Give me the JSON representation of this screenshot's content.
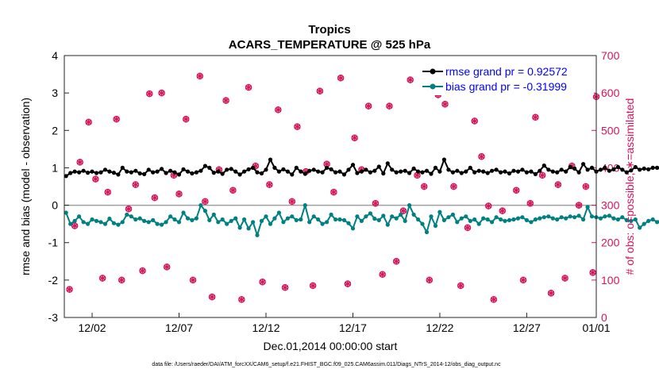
{
  "chart_data": {
    "type": "line",
    "title": "Tropics",
    "subtitle": "ACARS_TEMPERATURE @ 525 hPa",
    "xlabel": "Dec.01,2014 00:00:00 start",
    "ylabel_left": "rmse and bias (model - observation)",
    "ylabel_right": "# of obs: o=possible; ∗=assimilated",
    "footnote": "data file: /Users/raeder/DAI/ATM_forcXX/CAM6_setup/f.e21.FHIST_BGC.f09_025.CAM6assim.011/Diags_NTrS_2014-12/obs_diag_output.nc",
    "x_range": [
      0.4,
      31.0
    ],
    "x_ticks": [
      {
        "x": 2,
        "label": "12/02"
      },
      {
        "x": 7,
        "label": "12/07"
      },
      {
        "x": 12,
        "label": "12/12"
      },
      {
        "x": 17,
        "label": "12/17"
      },
      {
        "x": 22,
        "label": "12/22"
      },
      {
        "x": 27,
        "label": "12/27"
      },
      {
        "x": 31,
        "label": "01/01"
      }
    ],
    "y_left_range": [
      -3,
      4
    ],
    "y_left_ticks": [
      "-3",
      "-2",
      "-1",
      "0",
      "1",
      "2",
      "3",
      "4"
    ],
    "y_right_range": [
      0,
      700
    ],
    "y_right_ticks": [
      "0",
      "100",
      "200",
      "300",
      "400",
      "500",
      "600",
      "700"
    ],
    "zero_line": 0,
    "legend": [
      {
        "label": "rmse grand pr = 0.92572",
        "color": "#000000"
      },
      {
        "label": "bias grand pr = -0.31999",
        "color": "#008080"
      }
    ],
    "legend_position": "top-right",
    "colors": {
      "rmse": "#000000",
      "bias": "#008080",
      "obs": "#d6145a",
      "zero": "#a0a0a0",
      "legend_text": "#0000ff",
      "right_axis": "#d6145a"
    },
    "series": [
      {
        "name": "rmse",
        "x_start": 0.5,
        "x_step": 0.25,
        "values": [
          0.78,
          0.86,
          0.9,
          0.88,
          0.92,
          0.87,
          0.9,
          0.86,
          0.88,
          0.95,
          0.9,
          0.87,
          0.82,
          1.0,
          0.9,
          0.88,
          0.92,
          0.85,
          0.83,
          0.95,
          0.88,
          0.9,
          0.97,
          0.86,
          0.92,
          0.88,
          0.82,
          0.96,
          0.9,
          0.85,
          0.88,
          0.92,
          1.05,
          1.0,
          0.87,
          0.9,
          0.84,
          0.95,
          0.97,
          0.9,
          0.82,
          0.9,
          0.96,
          1.0,
          0.88,
          0.85,
          0.95,
          1.22,
          1.0,
          0.9,
          0.96,
          0.9,
          0.82,
          1.0,
          0.9,
          0.84,
          0.92,
          0.95,
          0.9,
          0.88,
          1.0,
          0.96,
          0.88,
          0.9,
          0.82,
          0.95,
          1.08,
          0.86,
          0.9,
          0.95,
          0.88,
          0.92,
          1.03,
          0.85,
          1.12,
          0.95,
          0.88,
          0.9,
          0.92,
          0.86,
          0.98,
          0.9,
          0.88,
          0.92,
          0.84,
          1.0,
          0.9,
          1.22,
          0.95,
          0.88,
          0.92,
          0.86,
          0.9,
          1.0,
          0.88,
          0.92,
          0.9,
          0.86,
          0.92,
          0.95,
          0.88,
          0.9,
          0.85,
          0.92,
          0.9,
          0.95,
          0.88,
          0.9,
          0.83,
          0.92,
          1.06,
          0.95,
          0.9,
          0.88,
          0.95,
          0.9,
          1.02,
          0.98,
          0.88,
          1.1,
          0.95,
          1.0,
          0.9,
          0.95,
          1.0,
          0.92,
          0.96,
          1.02,
          0.95,
          0.88,
          0.93,
          1.02,
          0.95,
          0.98,
          0.96,
          1.0,
          1.0,
          0.96,
          0.88,
          0.98,
          0.9,
          0.88,
          0.9,
          0.9,
          0.92,
          0.9,
          0.88,
          0.95,
          0.88,
          0.92,
          0.86,
          0.95,
          0.9,
          0.92,
          0.88,
          0.85,
          0.92,
          0.86,
          0.85,
          0.92,
          0.88,
          0.9,
          0.83,
          0.88,
          0.9,
          0.92,
          0.85,
          0.96,
          0.92,
          0.95,
          0.88,
          0.75
        ]
      },
      {
        "name": "bias",
        "x_start": 0.5,
        "x_step": 0.25,
        "values": [
          -0.2,
          -0.5,
          -0.42,
          -0.3,
          -0.45,
          -0.5,
          -0.38,
          -0.42,
          -0.45,
          -0.5,
          -0.36,
          -0.48,
          -0.52,
          -0.45,
          -0.25,
          -0.3,
          -0.38,
          -0.35,
          -0.42,
          -0.45,
          -0.4,
          -0.5,
          -0.52,
          -0.45,
          -0.3,
          -0.38,
          -0.45,
          -0.2,
          -0.35,
          -0.4,
          -0.35,
          0.0,
          -0.15,
          -0.4,
          -0.25,
          -0.45,
          -0.38,
          -0.5,
          -0.42,
          -0.35,
          -0.6,
          -0.38,
          -0.62,
          -0.45,
          -0.8,
          -0.42,
          -0.3,
          -0.5,
          -0.35,
          -0.2,
          -0.45,
          -0.35,
          -0.3,
          -0.4,
          -0.38,
          0.0,
          -0.45,
          -0.3,
          -0.38,
          -0.5,
          -0.45,
          -0.25,
          -0.38,
          -0.38,
          -0.4,
          -0.48,
          -0.62,
          -0.3,
          -0.42,
          -0.3,
          -0.22,
          -0.36,
          -0.4,
          -0.28,
          -0.52,
          -0.3,
          -0.35,
          -0.25,
          -0.42,
          0.0,
          -0.25,
          -0.38,
          -0.5,
          -0.72,
          -0.3,
          -0.55,
          -0.18,
          -0.4,
          -0.32,
          -0.25,
          -0.45,
          -0.35,
          -0.3,
          -0.42,
          -0.38,
          -0.5,
          -0.35,
          -0.38,
          -0.45,
          -0.32,
          -0.38,
          -0.42,
          -0.4,
          -0.38,
          -0.35,
          -0.32,
          -0.4,
          -0.45,
          -0.38,
          -0.35,
          -0.32,
          -0.3,
          -0.35,
          -0.38,
          -0.32,
          -0.35,
          -0.3,
          -0.32,
          -0.28,
          -0.38,
          -0.05,
          -0.3,
          -0.32,
          -0.35,
          -0.3,
          -0.28,
          -0.35,
          -0.38,
          -0.32,
          -0.4,
          -0.42,
          -0.38,
          -0.6,
          -0.5,
          -0.42,
          -0.38,
          -0.45,
          -0.38,
          -0.35,
          -0.4,
          -0.38,
          -0.32,
          -0.3,
          -0.35,
          -0.45,
          -0.42,
          -0.38,
          -0.35,
          -0.3,
          -0.42,
          -0.38,
          -0.3,
          -0.35,
          -0.38,
          -0.4,
          -0.35,
          -0.3,
          -0.28,
          -0.38,
          -0.35,
          -0.32,
          -0.28,
          -0.38,
          -0.35,
          -0.3,
          -0.25,
          -0.15,
          -0.1,
          -0.08,
          -0.05,
          -0.02,
          0.0
        ]
      },
      {
        "name": "obs",
        "axis": "right",
        "marker": "asterisk+circle",
        "points": [
          [
            0.7,
            75
          ],
          [
            1.0,
            245
          ],
          [
            1.3,
            415
          ],
          [
            1.8,
            522
          ],
          [
            2.2,
            370
          ],
          [
            2.6,
            105
          ],
          [
            2.9,
            335
          ],
          [
            3.4,
            530
          ],
          [
            3.7,
            100
          ],
          [
            4.1,
            290
          ],
          [
            4.5,
            355
          ],
          [
            4.9,
            125
          ],
          [
            5.3,
            598
          ],
          [
            5.6,
            320
          ],
          [
            6.0,
            600
          ],
          [
            6.3,
            135
          ],
          [
            6.7,
            380
          ],
          [
            7.0,
            330
          ],
          [
            7.4,
            530
          ],
          [
            7.8,
            100
          ],
          [
            8.2,
            645
          ],
          [
            8.5,
            310
          ],
          [
            8.9,
            55
          ],
          [
            9.3,
            395
          ],
          [
            9.7,
            580
          ],
          [
            10.1,
            340
          ],
          [
            10.6,
            48
          ],
          [
            11.0,
            615
          ],
          [
            11.4,
            405
          ],
          [
            11.8,
            95
          ],
          [
            12.2,
            355
          ],
          [
            12.7,
            555
          ],
          [
            13.1,
            80
          ],
          [
            13.5,
            310
          ],
          [
            13.8,
            510
          ],
          [
            14.3,
            390
          ],
          [
            14.7,
            85
          ],
          [
            15.1,
            605
          ],
          [
            15.5,
            410
          ],
          [
            15.9,
            335
          ],
          [
            16.3,
            640
          ],
          [
            16.7,
            90
          ],
          [
            17.1,
            480
          ],
          [
            17.5,
            395
          ],
          [
            17.9,
            565
          ],
          [
            18.3,
            305
          ],
          [
            18.7,
            115
          ],
          [
            19.1,
            565
          ],
          [
            19.5,
            150
          ],
          [
            19.9,
            285
          ],
          [
            20.3,
            635
          ],
          [
            20.7,
            380
          ],
          [
            21.1,
            350
          ],
          [
            21.4,
            100
          ],
          [
            21.9,
            595
          ],
          [
            22.3,
            570
          ],
          [
            22.8,
            350
          ],
          [
            23.2,
            85
          ],
          [
            23.6,
            240
          ],
          [
            24.0,
            525
          ],
          [
            24.4,
            430
          ],
          [
            24.8,
            298
          ],
          [
            25.1,
            48
          ],
          [
            25.6,
            285
          ],
          [
            26.0,
            635
          ],
          [
            26.4,
            340
          ],
          [
            26.8,
            100
          ],
          [
            27.2,
            305
          ],
          [
            27.5,
            535
          ],
          [
            27.9,
            380
          ],
          [
            28.4,
            65
          ],
          [
            28.8,
            355
          ],
          [
            29.2,
            105
          ],
          [
            29.6,
            405
          ],
          [
            30.0,
            300
          ],
          [
            30.4,
            350
          ],
          [
            30.8,
            120
          ],
          [
            31.0,
            590
          ]
        ]
      }
    ]
  }
}
